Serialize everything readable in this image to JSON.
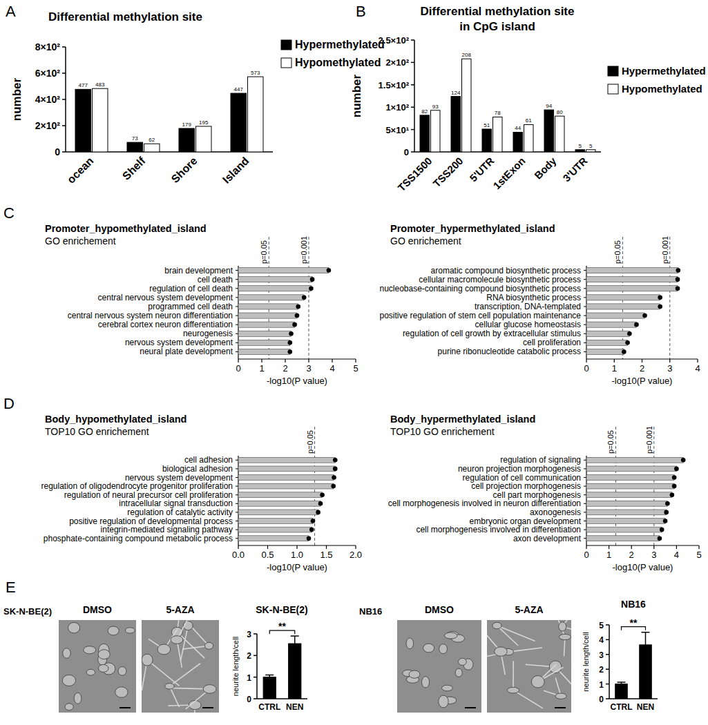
{
  "chart_data": [
    {
      "panel": "A",
      "type": "bar",
      "title": "Differential methylation site",
      "y_label": "number",
      "categories": [
        "ocean",
        "Shelf",
        "Shore",
        "Island"
      ],
      "series": [
        {
          "name": "Hypermethylated",
          "color": "#000000",
          "values": [
            477,
            73,
            179,
            447
          ]
        },
        {
          "name": "Hypomethylated",
          "color": "#ffffff",
          "values": [
            483,
            62,
            195,
            573
          ]
        }
      ],
      "ylim": [
        0,
        800
      ],
      "yticks": [
        0,
        {
          "value": 200,
          "label": "2×10²"
        },
        {
          "value": 400,
          "label": "4×10²"
        },
        {
          "value": 600,
          "label": "6×10²"
        },
        {
          "value": 800,
          "label": "8×10²"
        }
      ],
      "data_labels": true,
      "legend": "upper right"
    },
    {
      "panel": "B",
      "type": "bar",
      "title": "Differential methylation site\nin CpG island",
      "y_label": "number",
      "categories": [
        "TSS1500",
        "TSS200",
        "5'UTR",
        "1stExon",
        "Body",
        "3'UTR"
      ],
      "series": [
        {
          "name": "Hypermethylated",
          "color": "#000000",
          "values": [
            82,
            124,
            51,
            44,
            94,
            5
          ]
        },
        {
          "name": "Hypomethylated",
          "color": "#ffffff",
          "values": [
            93,
            208,
            78,
            61,
            80,
            5
          ]
        }
      ],
      "ylim": [
        0,
        250
      ],
      "yticks": [
        0,
        {
          "value": 50,
          "label": "5×10¹"
        },
        {
          "value": 100,
          "label": "1×10²"
        },
        {
          "value": 150,
          "label": "1.5×10²"
        },
        {
          "value": 200,
          "label": "2×10²"
        },
        {
          "value": 250,
          "label": "2.5×10²"
        }
      ],
      "data_labels": true,
      "legend": "upper right"
    },
    {
      "panel": "C",
      "type": "bar",
      "orientation": "horizontal",
      "title": "Promoter_hypomethylated_island",
      "subtitle": "GO enrichement",
      "x_label": "-log10(P value)",
      "categories": [
        "brain development",
        "cell death",
        "regulation of cell death",
        "central nervous system development",
        "programmed cell death",
        "central nervous system neuron differentiation",
        "cerebral cortex neuron differentiation",
        "neurogenesis",
        "nervous system development",
        "neural plate development"
      ],
      "values": [
        3.85,
        3.15,
        3.1,
        2.8,
        2.55,
        2.5,
        2.4,
        2.25,
        2.2,
        2.2
      ],
      "color": "#bfbfbf",
      "marker": "circle",
      "xlim": [
        0,
        5
      ],
      "xticks": [
        0,
        1,
        2,
        3,
        4,
        5
      ],
      "annotations": [
        {
          "value": 1.301,
          "label": "p=0.05"
        },
        {
          "value": 3,
          "label": "p=0.001"
        }
      ]
    },
    {
      "type": "bar",
      "orientation": "horizontal",
      "title": "Promoter_hypermethylated_island",
      "subtitle": "GO enrichement",
      "x_label": "-log10(P value)",
      "categories": [
        "aromatic compound biosynthetic process",
        "cellular macromolecule biosynthetic process",
        "nucleobase-containing compound biosynthetic process",
        "RNA biosynthetic process",
        "transcription, DNA-templated",
        "positive regulation of stem cell population maintenance",
        "cellular glucose homeostasis",
        "regulation of cell growth by extracellular stimulus",
        "cell proliferation",
        "purine ribonucleotide catabolic process"
      ],
      "values": [
        3.3,
        3.28,
        3.28,
        2.65,
        2.65,
        2.1,
        1.8,
        1.55,
        1.48,
        1.35
      ],
      "color": "#bfbfbf",
      "marker": "circle",
      "xlim": [
        0,
        4
      ],
      "xticks": [
        0,
        1,
        2,
        3,
        4
      ],
      "annotations": [
        {
          "value": 1.301,
          "label": "p=0.05"
        },
        {
          "value": 3,
          "label": "p=0.001"
        }
      ]
    },
    {
      "panel": "D",
      "type": "bar",
      "orientation": "horizontal",
      "title": "Body_hypomethylated_island",
      "subtitle": "TOP10 GO enrichement",
      "x_label": "-log10(P value)",
      "categories": [
        "cell adhesion",
        "biological adhesion",
        "nervous system development",
        "regulation of oligodendrocyte progenitor proliferation",
        "regulation of neural precursor cell proliferation",
        "intracellular signal transduction",
        "regulation of catalytic activity",
        "positive regulation of developmental process",
        "integrin-mediated signaling pathway",
        "phosphate-containing compound metabolic process"
      ],
      "values": [
        1.65,
        1.65,
        1.63,
        1.62,
        1.43,
        1.4,
        1.36,
        1.27,
        1.25,
        1.2
      ],
      "color": "#bfbfbf",
      "marker": "circle",
      "xlim": [
        0,
        2
      ],
      "xticks": [
        {
          "value": 0,
          "label": "0.0"
        },
        {
          "value": 0.5,
          "label": "0.5"
        },
        {
          "value": 1,
          "label": "1.0"
        },
        {
          "value": 1.5,
          "label": "1.5"
        },
        {
          "value": 2,
          "label": "2.0"
        }
      ],
      "annotations": [
        {
          "value": 1.301,
          "label": "p=0.05"
        }
      ]
    },
    {
      "type": "bar",
      "orientation": "horizontal",
      "title": "Body_hypermethylated_island",
      "subtitle": "TOP10 GO enrichement",
      "x_label": "-log10(P value)",
      "categories": [
        "regulation of signaling",
        "neuron projection morphogenesis",
        "regulation of cell communication",
        "cell projection morphogenesis",
        "cell part morphogenesis",
        "cell morphogenesis involved in neuron differentiation",
        "axonogenesis",
        "embryonic organ development",
        "cell morphogenesis involved in differentiation",
        "axon development"
      ],
      "values": [
        4.3,
        4.0,
        3.9,
        3.9,
        3.8,
        3.6,
        3.55,
        3.5,
        3.35,
        3.25
      ],
      "color": "#bfbfbf",
      "marker": "circle",
      "xlim": [
        0,
        5
      ],
      "xticks": [
        0,
        1,
        2,
        3,
        4,
        5
      ],
      "annotations": [
        {
          "value": 1.301,
          "label": "p=0.05"
        },
        {
          "value": 3,
          "label": "p=0.001"
        }
      ]
    },
    {
      "type": "bar",
      "title": "SK-N-BE(2)",
      "y_label": "neurite length/cell",
      "categories": [
        "CTRL",
        "NEN"
      ],
      "values": [
        1.0,
        2.55
      ],
      "errors": [
        0.1,
        0.35
      ],
      "color": "#000000",
      "ylim": [
        0,
        3
      ],
      "yticks": [
        0,
        1,
        2,
        3
      ],
      "significance": "**"
    },
    {
      "type": "bar",
      "title": "NB16",
      "y_label": "neurite length/cell",
      "categories": [
        "CTRL",
        "NEN"
      ],
      "values": [
        1.0,
        3.65
      ],
      "errors": [
        0.12,
        0.85
      ],
      "color": "#000000",
      "ylim": [
        0,
        5
      ],
      "yticks": [
        0,
        1,
        2,
        3,
        4,
        5
      ],
      "significance": "**"
    }
  ],
  "images": [
    {
      "panel": "E",
      "cell_line": "SK-N-BE(2)",
      "conditions": [
        "DMSO",
        "5-AZA"
      ]
    },
    {
      "cell_line": "NB16",
      "conditions": [
        "DMSO",
        "5-AZA"
      ]
    }
  ]
}
